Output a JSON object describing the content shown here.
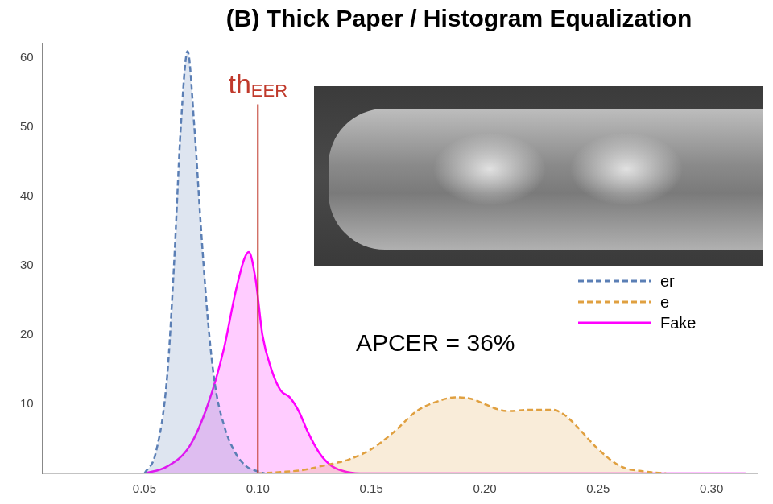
{
  "chart_data": {
    "type": "line",
    "title": "(B) Thick Paper / Histogram Equalization",
    "series": [
      {
        "name": "er",
        "color": "#5b7fb5",
        "line_style": "dashed",
        "x": [
          0.05,
          0.055,
          0.06,
          0.063,
          0.066,
          0.069,
          0.072,
          0.075,
          0.078,
          0.081,
          0.085,
          0.09,
          0.095,
          0.1,
          0.103
        ],
        "values": [
          0,
          3,
          14,
          30,
          50,
          61,
          50,
          35,
          22,
          13,
          7,
          3,
          1,
          0.3,
          0
        ]
      },
      {
        "name": "e",
        "color": "#e0a040",
        "line_style": "dashed",
        "x": [
          0.1,
          0.11,
          0.12,
          0.13,
          0.14,
          0.15,
          0.16,
          0.17,
          0.18,
          0.187,
          0.195,
          0.2,
          0.21,
          0.22,
          0.23,
          0.235,
          0.24,
          0.25,
          0.26,
          0.27,
          0.28
        ],
        "values": [
          0,
          0.2,
          0.5,
          1.2,
          2,
          3.5,
          6,
          9,
          10.5,
          11,
          10.7,
          10,
          9,
          9.2,
          9.2,
          8.5,
          7,
          3.5,
          1,
          0.3,
          0
        ]
      },
      {
        "name": "Fake",
        "color": "#ff00ff",
        "line_style": "solid",
        "x": [
          0.05,
          0.06,
          0.07,
          0.078,
          0.085,
          0.09,
          0.094,
          0.096,
          0.099,
          0.102,
          0.106,
          0.11,
          0.114,
          0.118,
          0.122,
          0.127,
          0.132,
          0.137,
          0.145,
          0.2,
          0.25,
          0.315
        ],
        "values": [
          0,
          1,
          4,
          10,
          18,
          26,
          31,
          32,
          28,
          20,
          15,
          12,
          11,
          9,
          6,
          3,
          1.2,
          0.4,
          0,
          0,
          0,
          0
        ]
      }
    ],
    "xlim": [
      0.005,
      0.32
    ],
    "xticks": [
      0.05,
      {
        "value": 0.1,
        "label": "0.10"
      },
      0.15,
      {
        "value": 0.2,
        "label": "0.20"
      },
      0.25,
      {
        "value": 0.3,
        "label": "0.30"
      }
    ],
    "ylim": [
      0,
      62
    ],
    "yticks": [
      10,
      20,
      30,
      40,
      50,
      60
    ],
    "grid": false,
    "legend": "right",
    "threshold": {
      "value": 0.1,
      "label": "th",
      "label_subscript": "EER",
      "color": "#c0392b"
    },
    "annotations": [
      {
        "text": "APCER = 36%"
      }
    ]
  }
}
